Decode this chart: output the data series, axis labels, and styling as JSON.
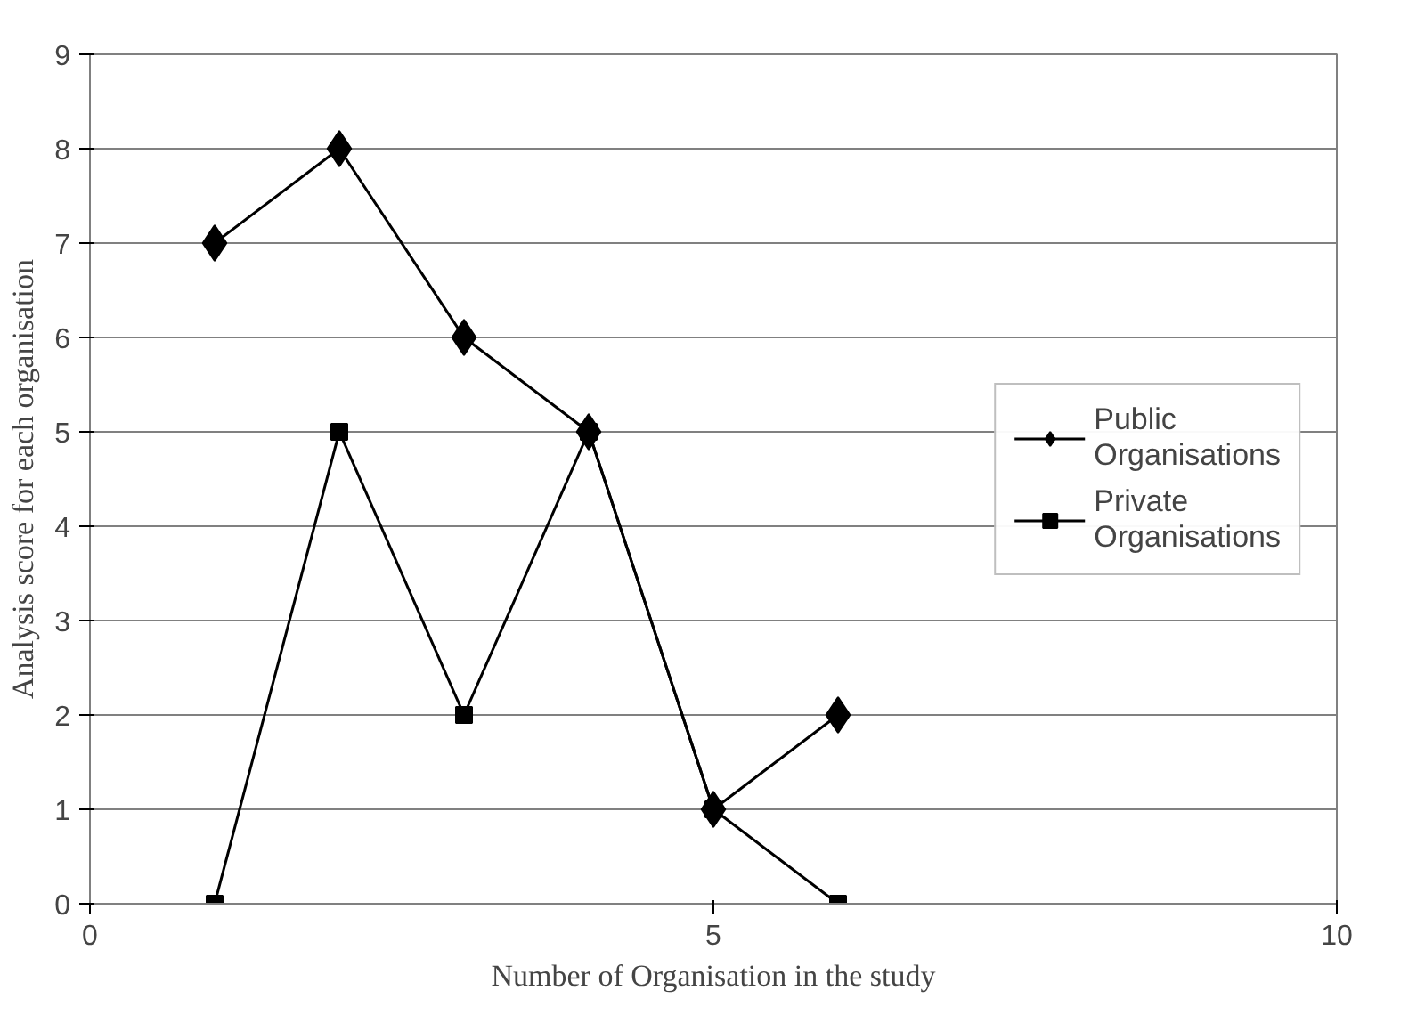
{
  "chart_data": {
    "type": "line",
    "xlabel": "Number of Organisation in the study",
    "ylabel": "Analysis score for each organisation",
    "x": [
      1,
      2,
      3,
      4,
      5,
      6
    ],
    "series": [
      {
        "name": "Public Organisations",
        "color": "#000000",
        "marker": "diamond",
        "values": [
          7,
          8,
          6,
          5,
          1,
          2
        ]
      },
      {
        "name": "Private Organisations",
        "color": "#000000",
        "marker": "square",
        "values": [
          0,
          5,
          2,
          5,
          1,
          0
        ]
      }
    ],
    "xlim": [
      0,
      10
    ],
    "xticks": [
      0,
      5,
      10
    ],
    "ylim": [
      0,
      9
    ],
    "yticks": [
      0,
      1,
      2,
      3,
      4,
      5,
      6,
      7,
      8,
      9
    ],
    "grid": "y",
    "legend": "right",
    "line_style": "solid"
  }
}
